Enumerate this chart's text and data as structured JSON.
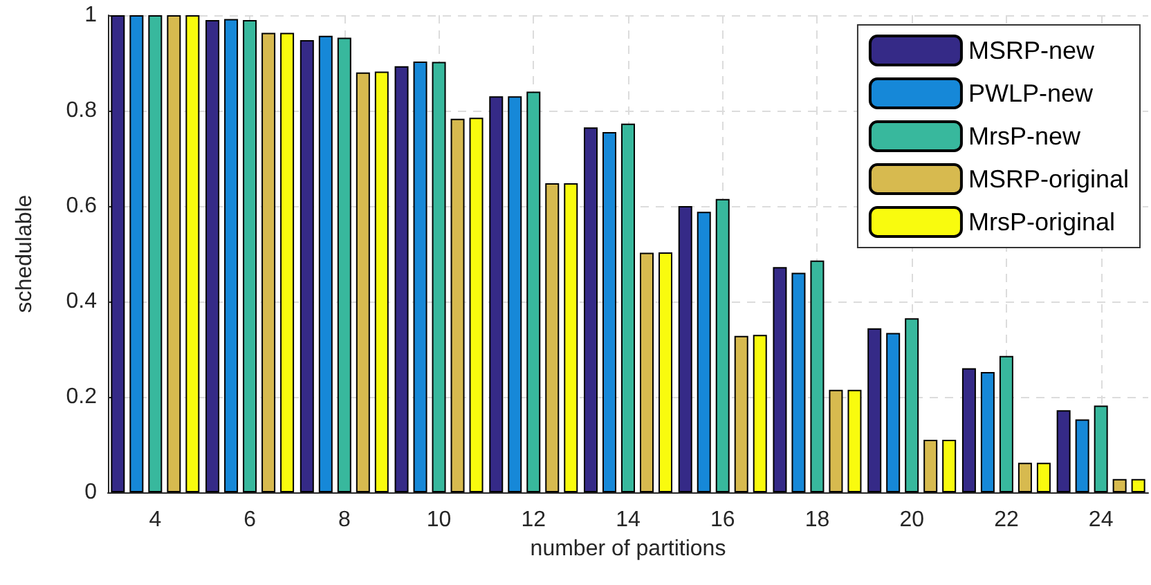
{
  "chart_data": {
    "type": "bar",
    "xlabel": "number of partitions",
    "ylabel": "schedulable",
    "categories": [
      "4",
      "6",
      "8",
      "10",
      "12",
      "14",
      "16",
      "18",
      "20",
      "22",
      "24"
    ],
    "series": [
      {
        "name": "MSRP-new",
        "color": "#352a87",
        "values": [
          1,
          0.99,
          0.948,
          0.893,
          0.83,
          0.765,
          0.6,
          0.472,
          0.344,
          0.26,
          0.172
        ]
      },
      {
        "name": "PWLP-new",
        "color": "#1688d8",
        "values": [
          1,
          0.992,
          0.957,
          0.903,
          0.83,
          0.755,
          0.588,
          0.46,
          0.334,
          0.252,
          0.153
        ]
      },
      {
        "name": "MrsP-new",
        "color": "#38b89d",
        "values": [
          1,
          0.99,
          0.953,
          0.902,
          0.84,
          0.773,
          0.615,
          0.486,
          0.365,
          0.286,
          0.182
        ]
      },
      {
        "name": "MSRP-original",
        "color": "#d7ba4f",
        "values": [
          1,
          0.963,
          0.88,
          0.783,
          0.648,
          0.502,
          0.328,
          0.215,
          0.11,
          0.062,
          0.028
        ]
      },
      {
        "name": "MrsP-original",
        "color": "#f9fb0e",
        "values": [
          1,
          0.963,
          0.882,
          0.785,
          0.648,
          0.503,
          0.33,
          0.215,
          0.11,
          0.062,
          0.028
        ]
      }
    ],
    "ylim": [
      0,
      1
    ],
    "yticks": [
      0,
      0.2,
      0.4,
      0.6,
      0.8,
      1
    ],
    "grid": true,
    "legend": "top right"
  }
}
